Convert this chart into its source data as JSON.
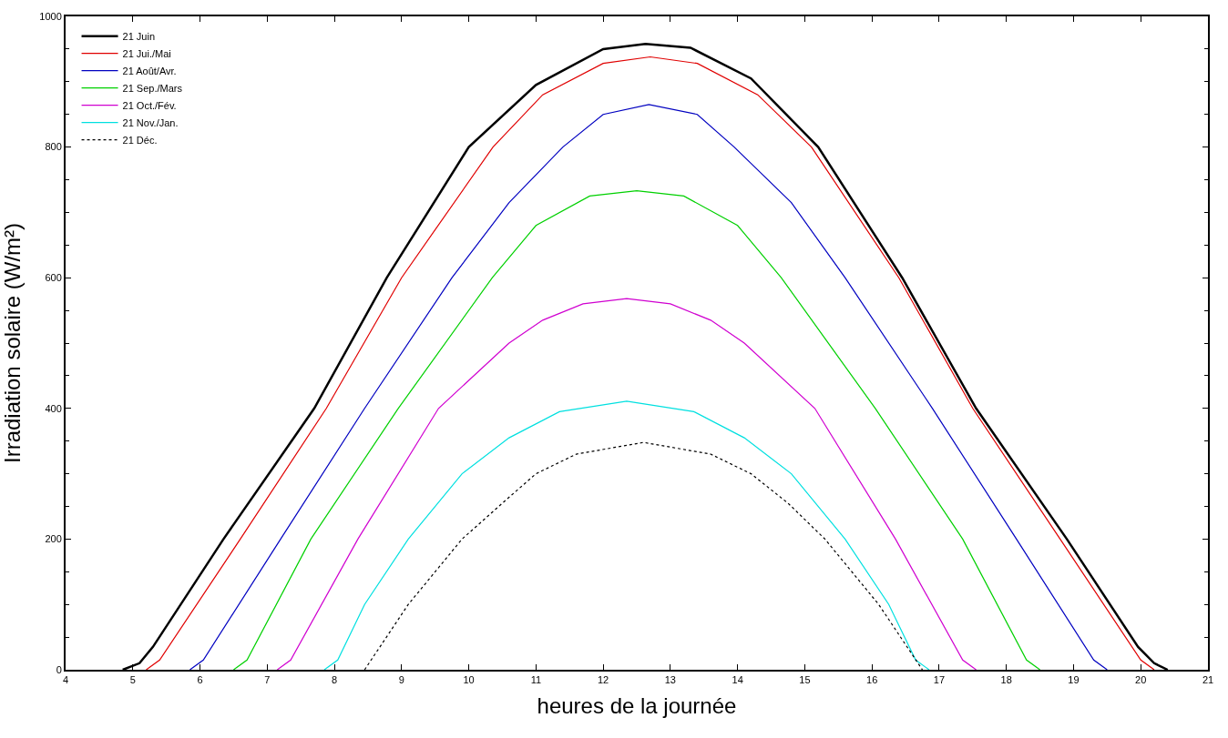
{
  "chart_data": {
    "type": "line",
    "xlabel": "heures de la journée",
    "ylabel": "Irradiation solaire (W/m²)",
    "xlim": [
      4,
      21
    ],
    "xticks": [
      4,
      5,
      6,
      7,
      8,
      9,
      10,
      11,
      12,
      13,
      14,
      15,
      16,
      17,
      18,
      19,
      20,
      21
    ],
    "ylim": [
      0,
      1000
    ],
    "yticks": [
      0,
      200,
      400,
      600,
      800,
      1000
    ],
    "legend": "top left",
    "marker": "none",
    "series": [
      {
        "name": "21 Juin",
        "color": "#000000",
        "line_style": "solid",
        "x": [
          4.85,
          5.1,
          5.3,
          6.35,
          7.7,
          8.78,
          10,
          11,
          12,
          12.63,
          13.3,
          14.2,
          15.2,
          16.45,
          17.55,
          18.9,
          19.96,
          20.2,
          20.4
        ],
        "values": [
          0,
          10,
          35,
          200,
          400,
          600,
          800,
          895,
          950,
          958,
          952,
          905,
          800,
          600,
          400,
          200,
          35,
          10,
          0
        ]
      },
      {
        "name": "21 Jui./Mai",
        "color": "#e00000",
        "line_style": "solid",
        "x": [
          5.2,
          5.4,
          6.6,
          7.88,
          9.0,
          10.36,
          11.1,
          12.0,
          12.7,
          13.4,
          14.3,
          15.1,
          16.4,
          17.5,
          18.8,
          20.0,
          20.2
        ],
        "values": [
          0,
          15,
          200,
          400,
          600,
          800,
          880,
          928,
          938,
          928,
          880,
          800,
          600,
          400,
          200,
          15,
          0
        ]
      },
      {
        "name": "21 Août/Avr.",
        "color": "#0000c0",
        "line_style": "solid",
        "x": [
          5.85,
          6.05,
          7.2,
          8.45,
          9.75,
          10.6,
          11.4,
          12.0,
          12.68,
          13.4,
          13.95,
          14.8,
          15.6,
          16.9,
          18.15,
          19.3,
          19.5
        ],
        "values": [
          0,
          15,
          200,
          400,
          600,
          715,
          800,
          850,
          865,
          850,
          800,
          715,
          600,
          400,
          200,
          15,
          0
        ]
      },
      {
        "name": "21 Sep./Mars",
        "color": "#00d000",
        "line_style": "solid",
        "x": [
          6.5,
          6.7,
          7.65,
          8.95,
          10.35,
          11.0,
          11.8,
          12.5,
          13.2,
          14.0,
          14.65,
          16.05,
          17.35,
          18.3,
          18.5
        ],
        "values": [
          0,
          15,
          200,
          400,
          600,
          680,
          725,
          733,
          725,
          680,
          600,
          400,
          200,
          15,
          0
        ]
      },
      {
        "name": "21 Oct./Fév.",
        "color": "#d000d0",
        "line_style": "solid",
        "x": [
          7.15,
          7.35,
          8.35,
          9.55,
          10.6,
          11.1,
          11.7,
          12.35,
          13.0,
          13.6,
          14.1,
          15.15,
          16.35,
          17.35,
          17.55
        ],
        "values": [
          0,
          15,
          200,
          400,
          500,
          535,
          560,
          568,
          560,
          535,
          500,
          400,
          200,
          15,
          0
        ]
      },
      {
        "name": "21 Nov./Jan.",
        "color": "#00e0e0",
        "line_style": "solid",
        "x": [
          7.85,
          8.05,
          8.45,
          9.1,
          9.9,
          10.6,
          11.35,
          12.35,
          13.35,
          14.1,
          14.8,
          15.6,
          16.25,
          16.65,
          16.85
        ],
        "values": [
          0,
          15,
          100,
          200,
          300,
          355,
          395,
          411,
          395,
          355,
          300,
          200,
          100,
          15,
          0
        ]
      },
      {
        "name": "21 Déc.",
        "color": "#000000",
        "line_style": "dotted",
        "x": [
          8.45,
          9.1,
          9.9,
          10.5,
          11.0,
          11.6,
          12.6,
          13.6,
          14.2,
          14.75,
          15.3,
          16.1,
          16.75
        ],
        "values": [
          0,
          100,
          200,
          255,
          300,
          330,
          348,
          330,
          300,
          255,
          200,
          100,
          0
        ]
      }
    ]
  }
}
